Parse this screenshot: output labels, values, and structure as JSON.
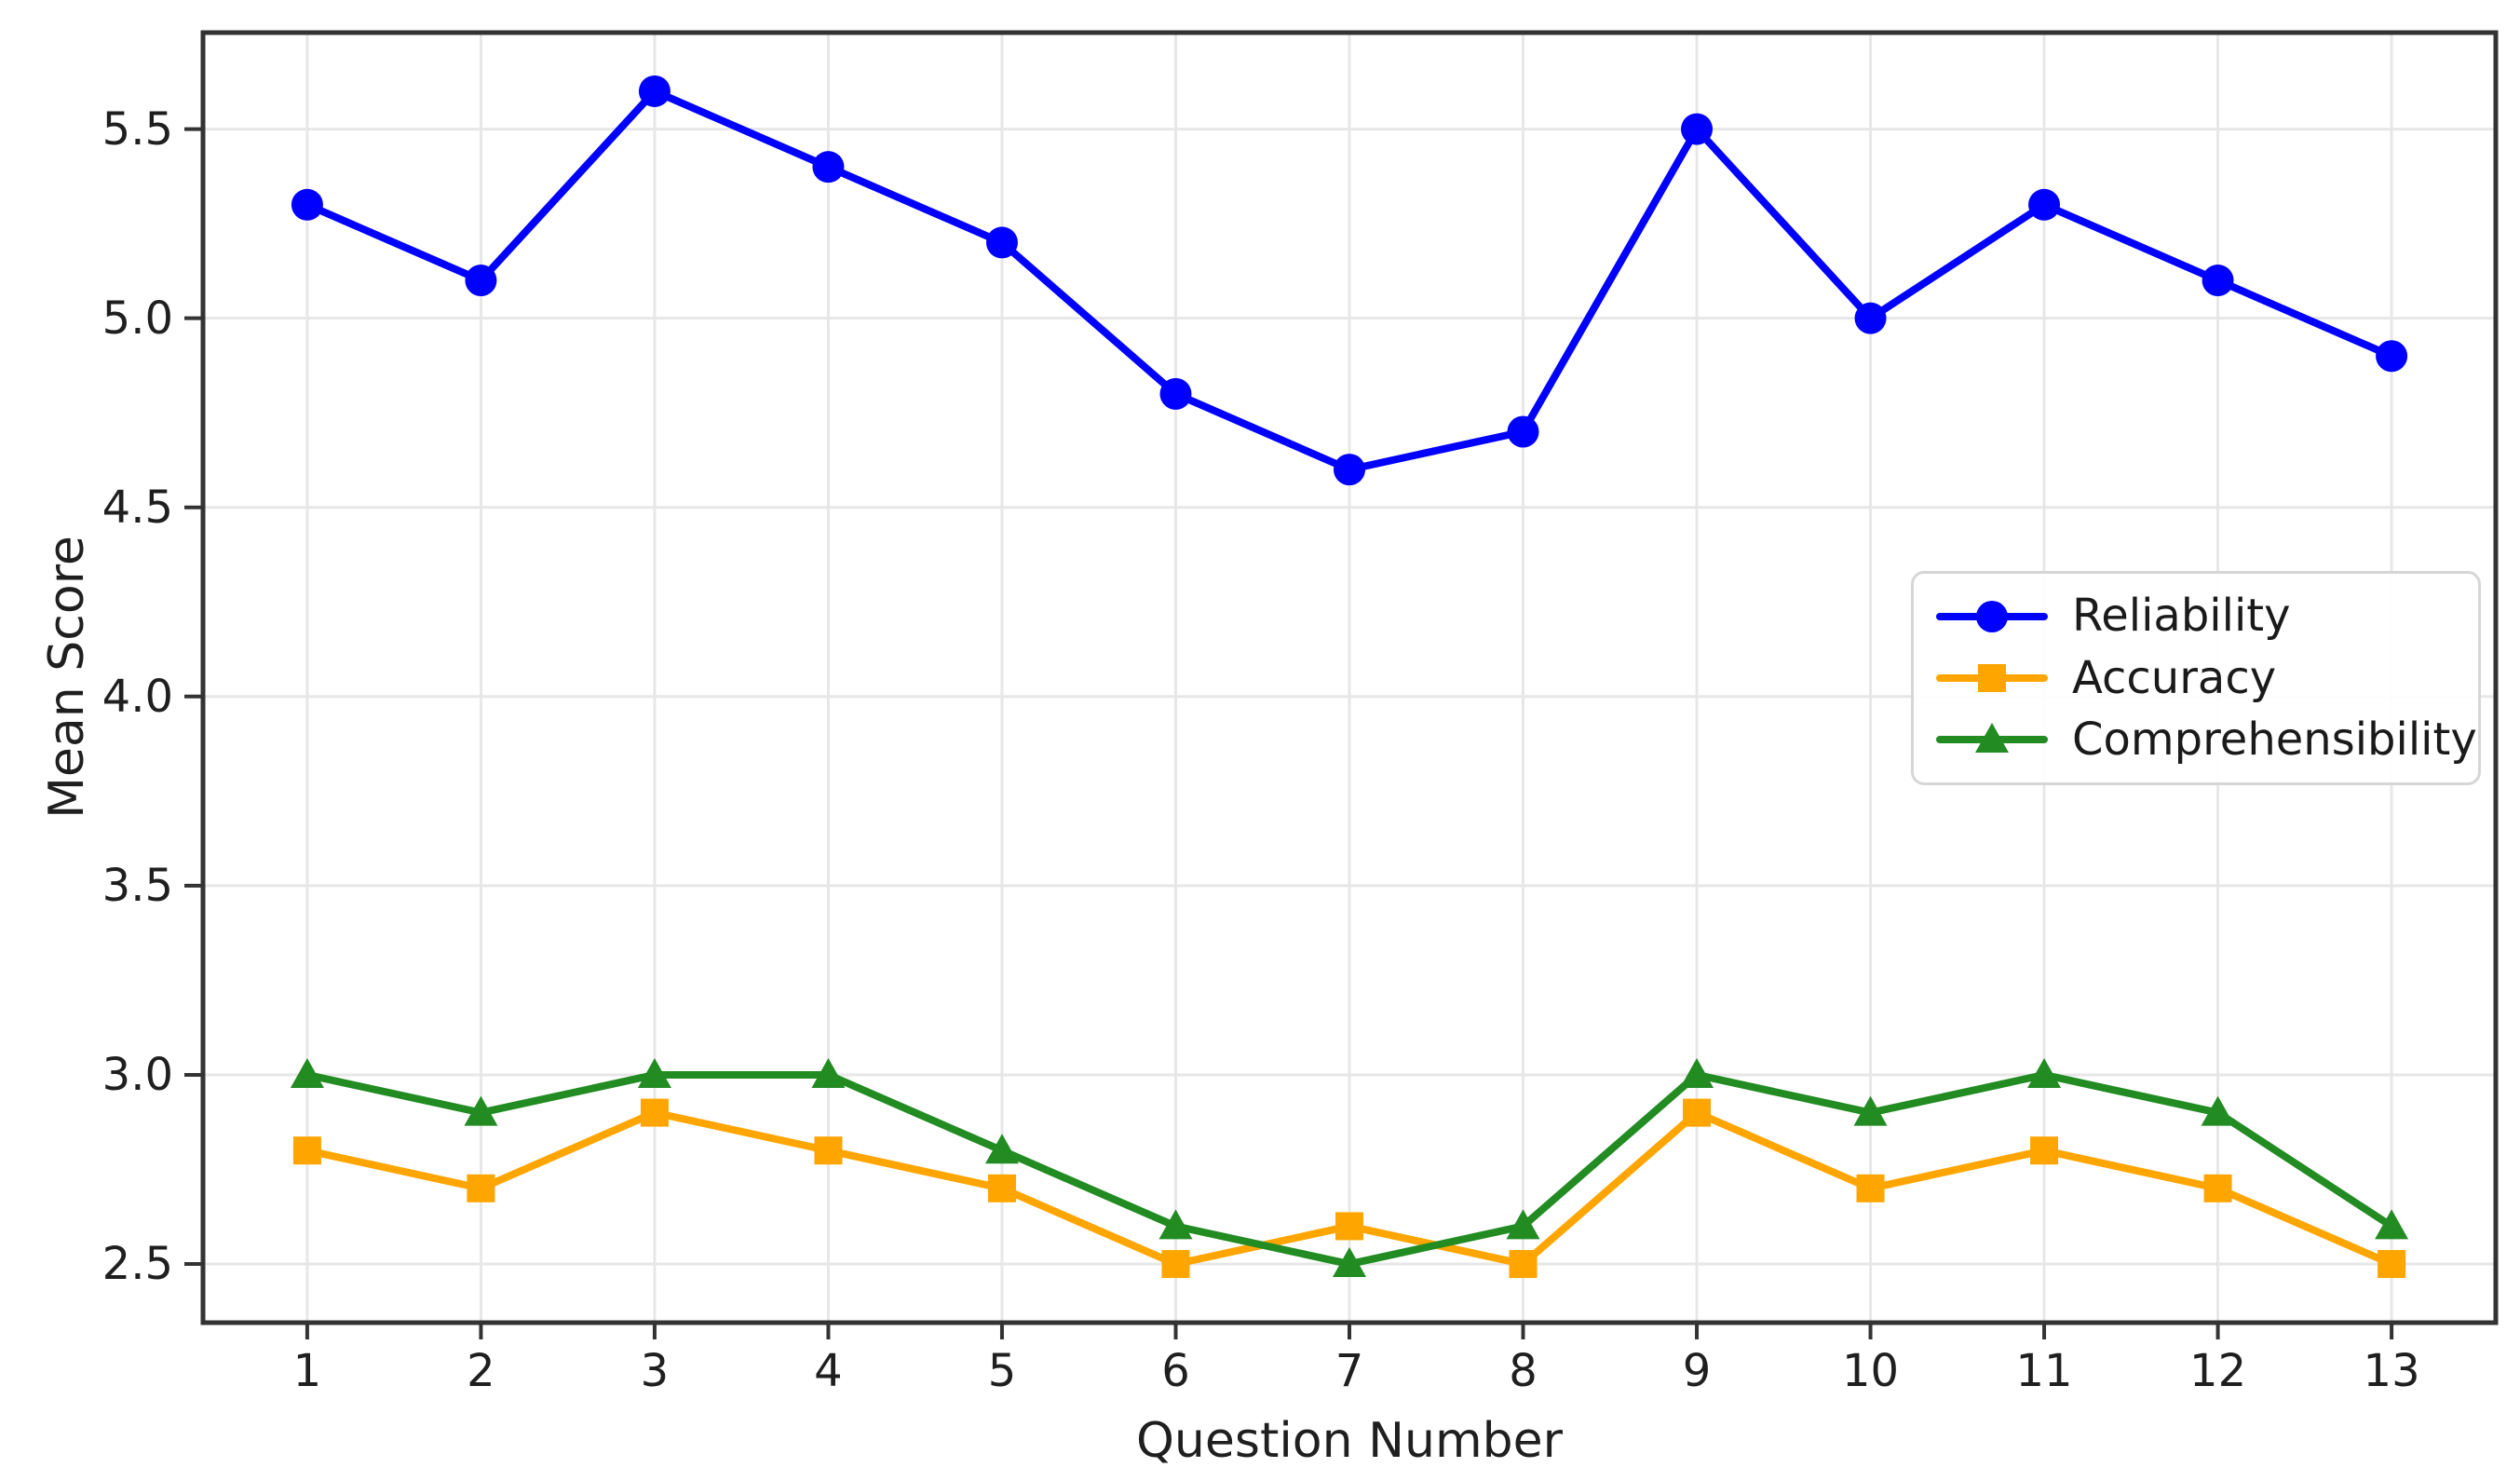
{
  "chart_data": {
    "type": "line",
    "title": "",
    "xlabel": "Question Number",
    "ylabel": "Mean Score",
    "x": [
      1,
      2,
      3,
      4,
      5,
      6,
      7,
      8,
      9,
      10,
      11,
      12,
      13
    ],
    "series": [
      {
        "name": "Reliability",
        "color": "#0000ff",
        "marker": "circle",
        "values": [
          5.3,
          5.1,
          5.6,
          5.4,
          5.2,
          4.8,
          4.6,
          4.7,
          5.5,
          5.0,
          5.3,
          5.1,
          4.9
        ]
      },
      {
        "name": "Accuracy",
        "color": "#ffa500",
        "marker": "square",
        "values": [
          2.8,
          2.7,
          2.9,
          2.8,
          2.7,
          2.5,
          2.6,
          2.5,
          2.9,
          2.7,
          2.8,
          2.7,
          2.5
        ]
      },
      {
        "name": "Comprehensibility",
        "color": "#228b22",
        "marker": "triangle",
        "values": [
          3.0,
          2.9,
          3.0,
          3.0,
          2.8,
          2.6,
          2.5,
          2.6,
          3.0,
          2.9,
          3.0,
          2.9,
          2.6
        ]
      }
    ],
    "xticks": [
      1,
      2,
      3,
      4,
      5,
      6,
      7,
      8,
      9,
      10,
      11,
      12,
      13
    ],
    "yticks": [
      2.5,
      3.0,
      3.5,
      4.0,
      4.5,
      5.0,
      5.5
    ],
    "xlim": [
      0.4,
      13.6
    ],
    "ylim": [
      2.345,
      5.755
    ],
    "grid": true,
    "legend_position": "center right"
  },
  "style": {
    "background": "#ffffff",
    "grid_color": "#e7e7e7",
    "spine_color": "#333333",
    "tick_color": "#333333",
    "text_color": "#1f1f1f",
    "legend_border": "#d6d6d6"
  }
}
